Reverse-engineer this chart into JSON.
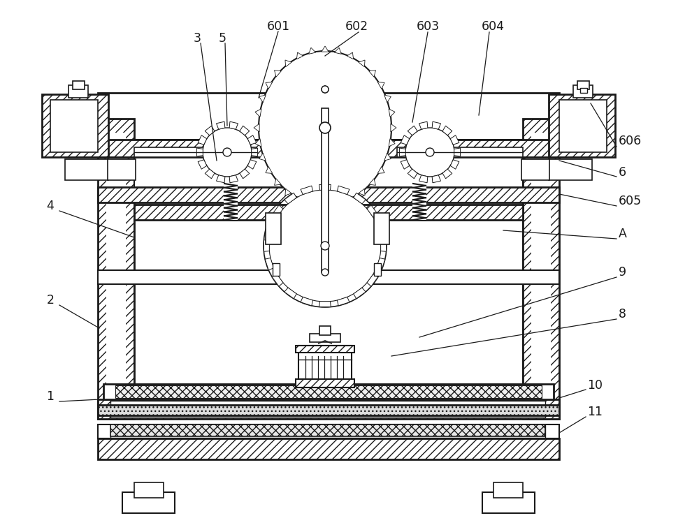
{
  "bg_color": "#ffffff",
  "line_color": "#1a1a1a",
  "fig_width": 10.0,
  "fig_height": 7.62,
  "dpi": 100
}
